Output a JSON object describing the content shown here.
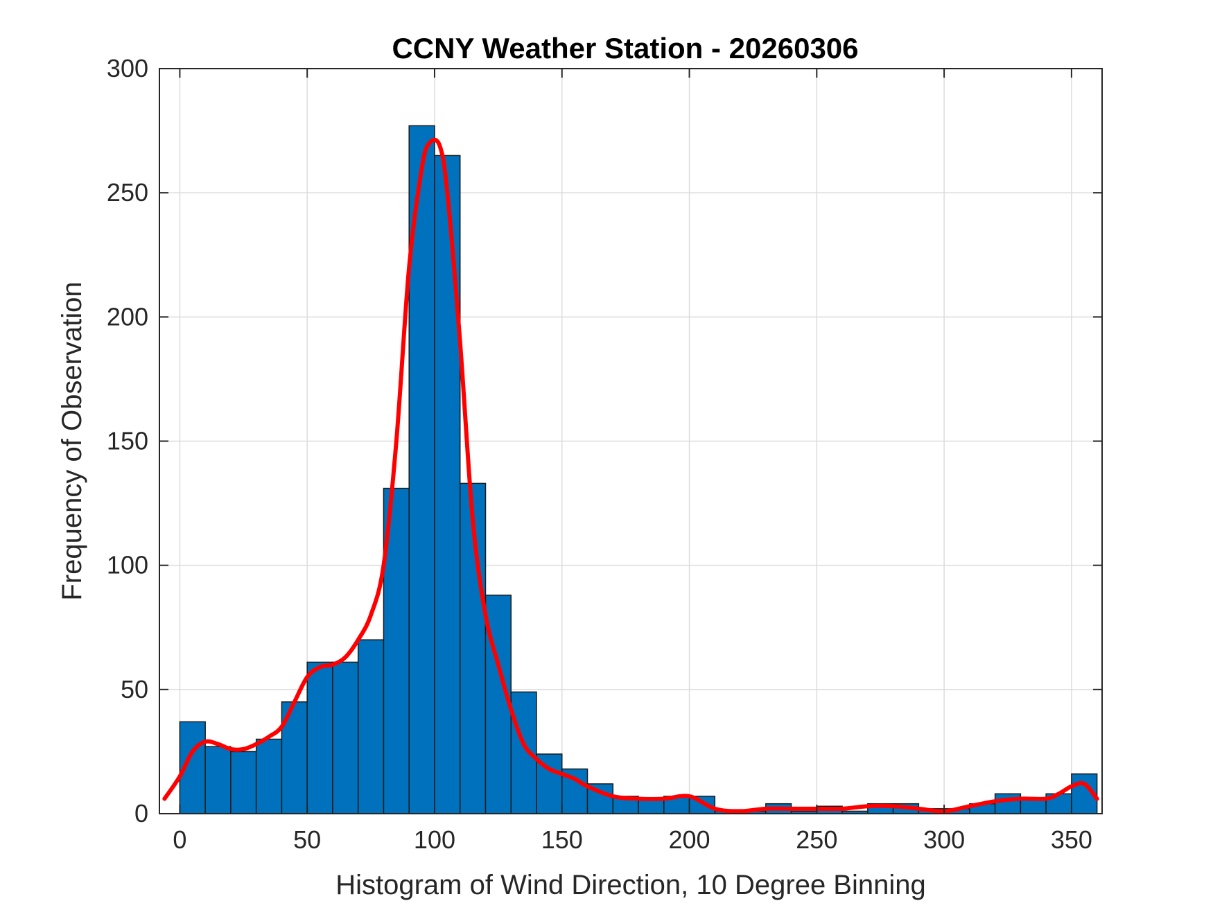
{
  "chart_data": {
    "type": "bar",
    "title": "CCNY Weather Station - 20260306",
    "xlabel": "Histogram of Wind Direction, 10 Degree Binning",
    "ylabel": "Frequency of Observation",
    "xlim": [
      -8,
      362
    ],
    "ylim": [
      0,
      300
    ],
    "xticks": [
      0,
      50,
      100,
      150,
      200,
      250,
      300,
      350
    ],
    "yticks": [
      0,
      50,
      100,
      150,
      200,
      250,
      300
    ],
    "grid": true,
    "bin_width": 10,
    "bin_edges": [
      0,
      10,
      20,
      30,
      40,
      50,
      60,
      70,
      80,
      90,
      100,
      110,
      120,
      130,
      140,
      150,
      160,
      170,
      180,
      190,
      200,
      210,
      220,
      230,
      240,
      250,
      260,
      270,
      280,
      290,
      300,
      310,
      320,
      330,
      340,
      350,
      360
    ],
    "values": [
      37,
      27,
      25,
      30,
      45,
      61,
      61,
      70,
      131,
      277,
      265,
      133,
      88,
      49,
      24,
      18,
      12,
      7,
      6,
      7,
      7,
      1,
      1,
      4,
      1,
      3,
      1,
      4,
      4,
      2,
      2,
      4,
      8,
      6,
      8,
      16
    ],
    "bar_color": "#0072BD",
    "curve_color": "#FF0000",
    "curve": {
      "x": [
        -6,
        0,
        5,
        10,
        15,
        20,
        25,
        30,
        35,
        40,
        45,
        50,
        55,
        60,
        65,
        70,
        75,
        80,
        85,
        90,
        95,
        98,
        102,
        105,
        110,
        115,
        120,
        125,
        130,
        135,
        140,
        145,
        150,
        155,
        160,
        170,
        180,
        190,
        200,
        210,
        220,
        230,
        240,
        250,
        260,
        270,
        280,
        290,
        300,
        310,
        320,
        330,
        340,
        345,
        350,
        355,
        360
      ],
      "y": [
        6,
        15,
        25,
        29,
        28,
        26,
        26,
        28,
        31,
        35,
        45,
        55,
        59,
        60,
        63,
        70,
        80,
        100,
        150,
        220,
        260,
        270,
        269,
        250,
        190,
        118,
        80,
        60,
        42,
        28,
        22,
        18,
        16,
        14,
        11,
        7,
        6,
        6,
        7,
        2,
        1,
        2,
        2,
        2,
        2,
        3,
        3,
        2,
        1,
        3,
        5,
        6,
        6,
        8,
        11,
        12,
        6
      ]
    }
  }
}
